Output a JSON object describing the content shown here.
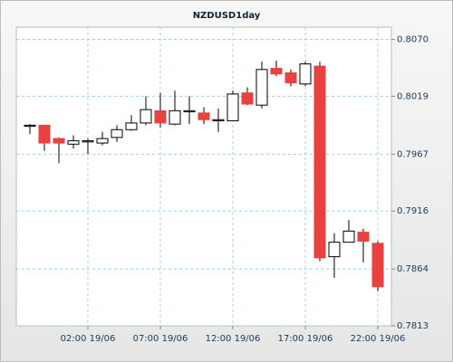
{
  "chart_data": {
    "type": "candlestick",
    "title": "NZDUSD1day",
    "categories": [
      null,
      null,
      null,
      null,
      "02:00 19/06",
      null,
      null,
      null,
      null,
      "07:00 19/06",
      null,
      null,
      null,
      null,
      "12:00 19/06",
      null,
      null,
      null,
      null,
      "17:00 19/06",
      null,
      null,
      null,
      null,
      "22:00 19/06"
    ],
    "open": [
      0.7992,
      0.7993,
      0.7981,
      0.7976,
      0.7978,
      0.7977,
      0.7982,
      0.7989,
      0.7995,
      0.8006,
      0.7994,
      0.8005,
      0.8004,
      0.7997,
      0.7997,
      0.8022,
      0.8011,
      0.8044,
      0.804,
      0.803,
      0.8046,
      0.7875,
      0.7888,
      0.7897,
      0.7887
    ],
    "high": [
      0.7994,
      0.7993,
      0.7982,
      0.7984,
      0.7981,
      0.7987,
      0.7993,
      0.8002,
      0.8019,
      0.8022,
      0.8024,
      0.8019,
      0.8009,
      0.8008,
      0.8024,
      0.8027,
      0.805,
      0.8051,
      0.8043,
      0.805,
      0.805,
      0.7896,
      0.7908,
      0.79,
      0.7889
    ],
    "low": [
      0.7985,
      0.797,
      0.7959,
      0.7972,
      0.7967,
      0.7975,
      0.7978,
      0.7988,
      0.7993,
      0.7991,
      0.7993,
      0.7994,
      0.7994,
      0.7987,
      0.7997,
      0.8011,
      0.8008,
      0.8037,
      0.8028,
      0.8028,
      0.7871,
      0.7856,
      0.7888,
      0.787,
      0.7844
    ],
    "close": [
      0.7993,
      0.7977,
      0.7977,
      0.7979,
      0.7979,
      0.7981,
      0.7989,
      0.7995,
      0.8007,
      0.7995,
      0.8006,
      0.8006,
      0.7998,
      0.7998,
      0.8021,
      0.8012,
      0.8043,
      0.8039,
      0.8031,
      0.8048,
      0.7874,
      0.7888,
      0.7898,
      0.7889,
      0.7848
    ],
    "up_color": "#ffffff",
    "down_color": "#e8413f",
    "ylim": [
      0.7813,
      0.8081
    ],
    "yticks": [
      {
        "value": 0.807,
        "label": "0.8070"
      },
      {
        "value": 0.8019,
        "label": "0.8019"
      },
      {
        "value": 0.7967,
        "label": "0.7967"
      },
      {
        "value": 0.7916,
        "label": "0.7916"
      },
      {
        "value": 0.7864,
        "label": "0.7864"
      },
      {
        "value": 0.7813,
        "label": "0.7813"
      }
    ],
    "grid": true
  }
}
